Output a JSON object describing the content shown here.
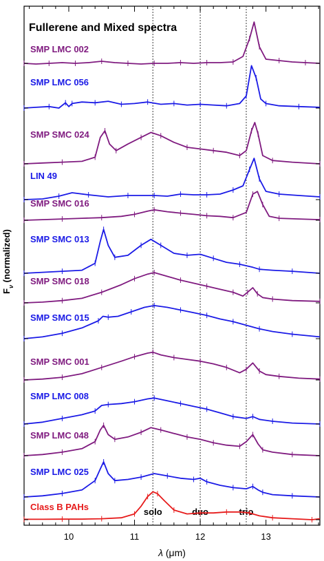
{
  "chart_data": {
    "type": "line",
    "title": "Fullerene and Mixed spectra",
    "xlabel_prefix": "λ",
    "xlabel_unit": "(μm)",
    "ylabel": "F",
    "ylabel_sub": "ν",
    "ylabel_suffix": "(normalized)",
    "xlim": [
      9.32,
      13.82
    ],
    "xticks": [
      10,
      11,
      12,
      13
    ],
    "grid": false,
    "reference_lines": [
      {
        "x": 11.28,
        "label": "solo"
      },
      {
        "x": 12.0,
        "label": "duo"
      },
      {
        "x": 12.7,
        "label": "trio"
      }
    ],
    "colors": {
      "purple": "#7f1a7f",
      "blue": "#1a1ae6",
      "red": "#e61a1a"
    },
    "series": [
      {
        "name": "SMP LMC 002",
        "color": "#7f1a7f",
        "x": [
          9.32,
          9.5,
          9.7,
          9.9,
          10.1,
          10.3,
          10.5,
          10.7,
          10.9,
          11.1,
          11.3,
          11.5,
          11.7,
          11.9,
          12.1,
          12.3,
          12.5,
          12.65,
          12.75,
          12.82,
          12.9,
          13.0,
          13.2,
          13.4,
          13.6,
          13.82
        ],
        "y": [
          0.0,
          -0.05,
          0.0,
          0.05,
          0.0,
          0.05,
          0.15,
          0.05,
          0.0,
          -0.05,
          0.0,
          0.0,
          0.05,
          0.0,
          0.05,
          0.05,
          0.1,
          0.5,
          1.8,
          3.0,
          1.2,
          0.3,
          0.2,
          0.1,
          0.05,
          0.0
        ]
      },
      {
        "name": "SMP LMC 056",
        "color": "#1a1ae6",
        "x": [
          9.32,
          9.5,
          9.7,
          9.85,
          9.95,
          10.0,
          10.05,
          10.2,
          10.4,
          10.6,
          10.8,
          11.0,
          11.2,
          11.4,
          11.6,
          11.8,
          12.0,
          12.2,
          12.4,
          12.6,
          12.7,
          12.78,
          12.85,
          12.92,
          13.0,
          13.2,
          13.5,
          13.82
        ],
        "y": [
          0.0,
          0.05,
          0.1,
          0.0,
          0.35,
          0.1,
          0.3,
          0.4,
          0.35,
          0.45,
          0.25,
          0.3,
          0.4,
          0.25,
          0.3,
          0.2,
          0.25,
          0.2,
          0.15,
          0.3,
          0.8,
          2.8,
          2.0,
          0.6,
          0.3,
          0.15,
          0.1,
          0.05
        ]
      },
      {
        "name": "SMP SMC 024",
        "color": "#7f1a7f",
        "x": [
          9.32,
          9.6,
          9.9,
          10.2,
          10.4,
          10.48,
          10.55,
          10.62,
          10.72,
          10.9,
          11.1,
          11.25,
          11.4,
          11.6,
          11.8,
          12.0,
          12.2,
          12.4,
          12.6,
          12.7,
          12.78,
          12.83,
          12.88,
          12.95,
          13.1,
          13.4,
          13.82
        ],
        "y": [
          0.0,
          0.05,
          0.1,
          0.15,
          0.4,
          1.6,
          2.0,
          1.2,
          0.8,
          1.2,
          1.6,
          1.9,
          1.7,
          1.3,
          1.0,
          0.9,
          0.8,
          0.7,
          0.5,
          0.8,
          2.0,
          2.5,
          1.8,
          0.5,
          0.2,
          0.1,
          0.0
        ]
      },
      {
        "name": "LIN 49",
        "color": "#1a1ae6",
        "x": [
          9.32,
          9.6,
          9.85,
          10.05,
          10.3,
          10.6,
          10.9,
          11.1,
          11.3,
          11.5,
          11.7,
          11.9,
          12.1,
          12.3,
          12.5,
          12.65,
          12.75,
          12.82,
          12.9,
          13.0,
          13.2,
          13.5,
          13.82
        ],
        "y": [
          0.0,
          0.05,
          0.25,
          0.5,
          0.35,
          0.2,
          0.3,
          0.3,
          0.3,
          0.25,
          0.4,
          0.35,
          0.35,
          0.4,
          0.7,
          1.0,
          2.2,
          3.0,
          1.5,
          0.6,
          0.4,
          0.3,
          0.2
        ]
      },
      {
        "name": "SMP SMC 016",
        "color": "#7f1a7f",
        "x": [
          9.32,
          9.6,
          9.9,
          10.2,
          10.5,
          10.8,
          11.0,
          11.2,
          11.3,
          11.5,
          11.7,
          11.9,
          12.1,
          12.3,
          12.5,
          12.7,
          12.8,
          12.87,
          12.95,
          13.05,
          13.2,
          13.5,
          13.82
        ],
        "y": [
          0.0,
          0.05,
          0.1,
          0.15,
          0.2,
          0.3,
          0.45,
          0.7,
          0.8,
          0.65,
          0.55,
          0.45,
          0.35,
          0.3,
          0.2,
          0.6,
          2.0,
          2.2,
          1.2,
          0.3,
          0.15,
          0.1,
          0.05
        ]
      },
      {
        "name": "SMP SMC 013",
        "color": "#1a1ae6",
        "x": [
          9.32,
          9.6,
          9.9,
          10.2,
          10.4,
          10.48,
          10.53,
          10.6,
          10.7,
          10.9,
          11.1,
          11.25,
          11.4,
          11.6,
          11.8,
          12.0,
          12.2,
          12.4,
          12.6,
          12.8,
          12.9,
          13.1,
          13.4,
          13.82
        ],
        "y": [
          0.0,
          0.05,
          0.1,
          0.15,
          0.5,
          1.6,
          2.2,
          1.4,
          0.8,
          0.9,
          1.4,
          1.7,
          1.4,
          1.0,
          0.9,
          0.95,
          0.75,
          0.55,
          0.45,
          0.3,
          0.2,
          0.15,
          0.1,
          0.0
        ]
      },
      {
        "name": "SMP SMC 018",
        "color": "#7f1a7f",
        "x": [
          9.32,
          9.6,
          9.9,
          10.2,
          10.5,
          10.8,
          11.0,
          11.2,
          11.3,
          11.5,
          11.7,
          11.9,
          12.1,
          12.3,
          12.5,
          12.65,
          12.72,
          12.8,
          12.87,
          12.95,
          13.1,
          13.4,
          13.82
        ],
        "y": [
          0.0,
          0.05,
          0.15,
          0.3,
          0.7,
          1.2,
          1.6,
          1.9,
          2.0,
          1.75,
          1.5,
          1.3,
          1.1,
          0.9,
          0.7,
          0.45,
          0.7,
          1.0,
          0.6,
          0.35,
          0.25,
          0.15,
          0.1
        ]
      },
      {
        "name": "SMP SMC 015",
        "color": "#1a1ae6",
        "x": [
          9.32,
          9.6,
          9.9,
          10.2,
          10.45,
          10.52,
          10.6,
          10.75,
          10.95,
          11.15,
          11.3,
          11.5,
          11.7,
          11.9,
          12.1,
          12.3,
          12.5,
          12.7,
          12.9,
          13.1,
          13.4,
          13.82
        ],
        "y": [
          0.0,
          0.1,
          0.3,
          0.6,
          1.0,
          1.25,
          1.2,
          1.25,
          1.5,
          1.75,
          1.85,
          1.75,
          1.6,
          1.45,
          1.3,
          1.1,
          0.95,
          0.75,
          0.55,
          0.4,
          0.25,
          0.1
        ]
      },
      {
        "name": "SMP SMC 001",
        "color": "#7f1a7f",
        "x": [
          9.32,
          9.6,
          9.9,
          10.2,
          10.5,
          10.8,
          11.0,
          11.2,
          11.28,
          11.4,
          11.6,
          11.8,
          12.0,
          12.2,
          12.4,
          12.6,
          12.7,
          12.8,
          12.9,
          13.0,
          13.2,
          13.5,
          13.82
        ],
        "y": [
          0.0,
          0.05,
          0.15,
          0.35,
          0.7,
          1.05,
          1.3,
          1.5,
          1.55,
          1.4,
          1.25,
          1.15,
          1.05,
          0.9,
          0.7,
          0.4,
          0.6,
          0.95,
          0.5,
          0.3,
          0.2,
          0.1,
          0.05
        ]
      },
      {
        "name": "SMP LMC 008",
        "color": "#1a1ae6",
        "x": [
          9.32,
          9.6,
          9.9,
          10.2,
          10.4,
          10.5,
          10.6,
          10.8,
          11.0,
          11.2,
          11.3,
          11.5,
          11.7,
          11.9,
          12.1,
          12.3,
          12.5,
          12.7,
          12.8,
          12.9,
          13.1,
          13.4,
          13.82
        ],
        "y": [
          0.0,
          0.1,
          0.3,
          0.5,
          0.7,
          1.0,
          1.05,
          1.1,
          1.2,
          1.35,
          1.4,
          1.25,
          1.1,
          0.95,
          0.8,
          0.6,
          0.4,
          0.3,
          0.4,
          0.25,
          0.15,
          0.05,
          0.0
        ]
      },
      {
        "name": "SMP LMC 048",
        "color": "#7f1a7f",
        "x": [
          9.32,
          9.6,
          9.9,
          10.2,
          10.4,
          10.48,
          10.53,
          10.6,
          10.7,
          10.9,
          11.1,
          11.25,
          11.4,
          11.6,
          11.8,
          12.0,
          12.2,
          12.4,
          12.6,
          12.7,
          12.8,
          12.88,
          12.95,
          13.1,
          13.4,
          13.82
        ],
        "y": [
          0.0,
          0.05,
          0.15,
          0.3,
          0.6,
          1.1,
          1.3,
          0.9,
          0.7,
          0.8,
          1.0,
          1.2,
          1.1,
          0.95,
          0.8,
          0.7,
          0.55,
          0.45,
          0.4,
          0.6,
          0.9,
          0.5,
          0.25,
          0.15,
          0.05,
          0.0
        ]
      },
      {
        "name": "SMP LMC 025",
        "color": "#1a1ae6",
        "x": [
          9.32,
          9.6,
          9.9,
          10.2,
          10.4,
          10.48,
          10.53,
          10.6,
          10.7,
          10.9,
          11.1,
          11.3,
          11.5,
          11.7,
          11.9,
          12.0,
          12.1,
          12.3,
          12.5,
          12.7,
          12.8,
          12.88,
          12.95,
          13.1,
          13.4,
          13.82
        ],
        "y": [
          0.0,
          0.05,
          0.15,
          0.3,
          0.7,
          1.2,
          1.5,
          1.0,
          0.7,
          0.75,
          0.85,
          1.0,
          0.9,
          0.8,
          0.75,
          0.8,
          0.65,
          0.5,
          0.4,
          0.35,
          0.45,
          0.3,
          0.2,
          0.1,
          0.05,
          0.0
        ]
      },
      {
        "name": "Class B PAHs",
        "color": "#e61a1a",
        "x": [
          9.32,
          9.6,
          9.9,
          10.2,
          10.5,
          10.8,
          11.0,
          11.1,
          11.2,
          11.28,
          11.35,
          11.45,
          11.6,
          11.8,
          12.0,
          12.2,
          12.4,
          12.6,
          12.75,
          12.9,
          13.1,
          13.4,
          13.7,
          13.82
        ],
        "y": [
          0.02,
          0.02,
          0.03,
          0.03,
          0.05,
          0.1,
          0.3,
          0.7,
          1.2,
          1.45,
          1.35,
          1.0,
          0.5,
          0.3,
          0.35,
          0.35,
          0.4,
          0.4,
          0.35,
          0.2,
          0.1,
          0.05,
          0.0,
          0.05
        ]
      }
    ]
  }
}
